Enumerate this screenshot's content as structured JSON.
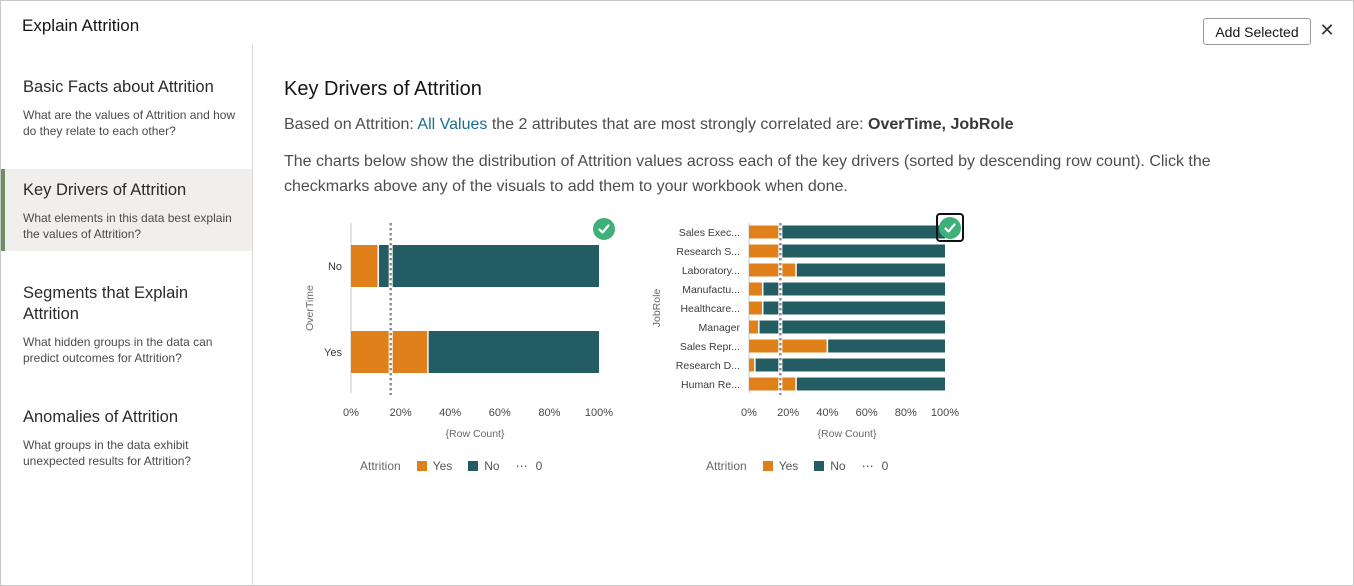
{
  "dialog": {
    "title": "Explain Attrition",
    "add_selected_label": "Add Selected",
    "close_glyph": "✕"
  },
  "sidebar": {
    "items": [
      {
        "heading": "Basic Facts about Attrition",
        "desc": "What are the values of Attrition and how do they relate to each other?",
        "active": false
      },
      {
        "heading": "Key Drivers of Attrition",
        "desc": "What elements in this data best explain the values of Attrition?",
        "active": true
      },
      {
        "heading": "Segments that Explain Attrition",
        "desc": "What hidden groups in the data can predict outcomes for Attrition?",
        "active": false
      },
      {
        "heading": "Anomalies of Attrition",
        "desc": "What groups in the data exhibit unexpected results for Attrition?",
        "active": false
      }
    ]
  },
  "main": {
    "title": "Key Drivers of Attrition",
    "line_prefix": "Based on Attrition: ",
    "line_link": "All Values",
    "line_middle": " the 2 attributes that are most strongly correlated are: ",
    "line_bold": "OverTime, JobRole",
    "paragraph": "The charts below show the distribution of Attrition values across each of the key drivers (sorted by descending row count). Click the checkmarks above any of the visuals to add them to your workbook when done."
  },
  "colors": {
    "yes": "#e0801a",
    "no": "#245c63",
    "reference": "#888888",
    "check": "#3fb07a",
    "link": "#1a6e8b",
    "active_bar": "#6c8f63"
  },
  "legend": {
    "title": "Attrition",
    "yes_label": "Yes",
    "no_label": "No",
    "ref_label": "0"
  },
  "chart_data": [
    {
      "type": "bar",
      "orientation": "horizontal",
      "stacked": "percent",
      "ylabel": "OverTime",
      "xlabel": "{Row Count}",
      "categories": [
        "No",
        "Yes"
      ],
      "series": [
        {
          "name": "Yes",
          "values": [
            11,
            31
          ]
        },
        {
          "name": "No",
          "values": [
            89,
            69
          ]
        }
      ],
      "reference_line": 16,
      "xlim": [
        0,
        100
      ],
      "ticks": [
        "0%",
        "20%",
        "40%",
        "60%",
        "80%",
        "100%"
      ],
      "selected": true
    },
    {
      "type": "bar",
      "orientation": "horizontal",
      "stacked": "percent",
      "ylabel": "JobRole",
      "xlabel": "{Row Count}",
      "categories": [
        "Sales Exec...",
        "Research S...",
        "Laboratory...",
        "Manufactu...",
        "Healthcare...",
        "Manager",
        "Sales Repr...",
        "Research D...",
        "Human Re..."
      ],
      "series": [
        {
          "name": "Yes",
          "values": [
            16,
            16,
            24,
            7,
            7,
            5,
            40,
            3,
            24
          ]
        },
        {
          "name": "No",
          "values": [
            84,
            84,
            76,
            93,
            93,
            95,
            60,
            97,
            76
          ]
        }
      ],
      "reference_line": 16,
      "xlim": [
        0,
        100
      ],
      "ticks": [
        "0%",
        "20%",
        "40%",
        "60%",
        "80%",
        "100%"
      ],
      "selected": true
    }
  ]
}
